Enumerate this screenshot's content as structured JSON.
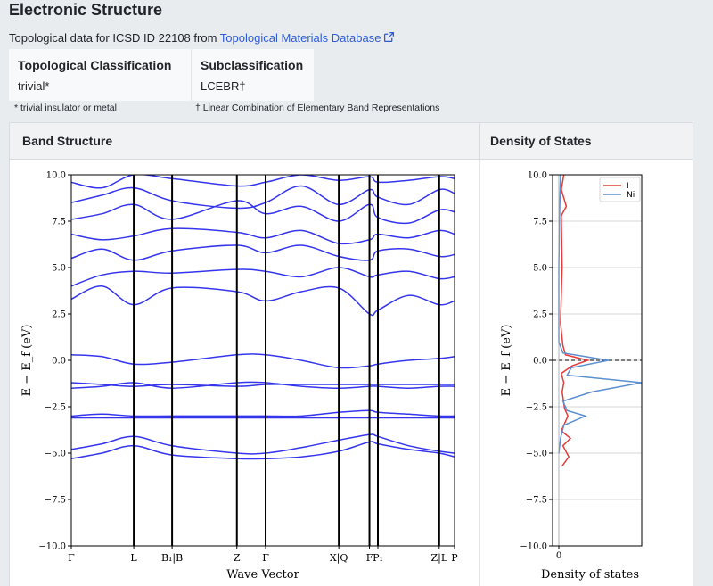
{
  "page": {
    "title": "Electronic Structure",
    "subtitle_prefix": "Topological data for ICSD ID 22108 from ",
    "subtitle_link": "Topological Materials Database",
    "link_icon": "external-link-icon"
  },
  "classification": {
    "topo_header": "Topological Classification",
    "topo_value": "trivial*",
    "sub_header": "Subclassification",
    "sub_value": "LCEBR†",
    "footnote_topo": "* trivial insulator or metal",
    "footnote_sub": "† Linear Combination of Elementary Band Representations"
  },
  "panel": {
    "band_header": "Band Structure",
    "dos_header": "Density of States"
  },
  "chart_data": [
    {
      "type": "line",
      "title": "",
      "xlabel": "Wave Vector",
      "ylabel": "E − E_f (eV)",
      "ylim": [
        -10,
        10
      ],
      "yticks": [
        -10.0,
        -7.5,
        -5.0,
        -2.5,
        0.0,
        2.5,
        5.0,
        7.5,
        10.0
      ],
      "ytick_labels": [
        "−10.0",
        "−7.5",
        "−5.0",
        "−2.5",
        "0.0",
        "2.5",
        "5.0",
        "7.5",
        "10.0"
      ],
      "kpoints": [
        {
          "label": "Γ",
          "x": 0.0
        },
        {
          "label": "L",
          "x": 0.163
        },
        {
          "label": "B₁|B",
          "x": 0.263
        },
        {
          "label": "Z",
          "x": 0.432
        },
        {
          "label": "Γ",
          "x": 0.507
        },
        {
          "label": "X|Q",
          "x": 0.698
        },
        {
          "label": "F",
          "x": 0.778
        },
        {
          "label": "P₁",
          "x": 0.8
        },
        {
          "label": "Z|L",
          "x": 0.96
        },
        {
          "label": "P",
          "x": 1.0
        }
      ],
      "band_color": "#3535ee",
      "bands": [
        {
          "x": [
            0,
            0.08,
            0.163,
            0.263,
            0.432,
            0.507,
            0.6,
            0.698,
            0.778,
            0.8,
            0.88,
            0.96,
            1.0
          ],
          "y": [
            -5.3,
            -5.0,
            -4.6,
            -5.1,
            -5.3,
            -5.3,
            -5.2,
            -4.9,
            -4.4,
            -4.5,
            -4.8,
            -5.0,
            -5.2
          ]
        },
        {
          "x": [
            0,
            0.08,
            0.163,
            0.263,
            0.432,
            0.507,
            0.6,
            0.698,
            0.778,
            0.8,
            0.88,
            0.96,
            1.0
          ],
          "y": [
            -4.8,
            -4.5,
            -4.1,
            -4.6,
            -5.0,
            -5.0,
            -4.7,
            -4.3,
            -4.0,
            -4.1,
            -4.6,
            -4.9,
            -5.0
          ]
        },
        {
          "x": [
            0,
            0.08,
            0.163,
            0.263,
            0.432,
            0.507,
            0.6,
            0.698,
            0.778,
            0.8,
            0.88,
            0.96,
            1.0
          ],
          "y": [
            -3.1,
            -3.1,
            -3.1,
            -3.1,
            -3.1,
            -3.1,
            -3.1,
            -3.1,
            -3.1,
            -3.1,
            -3.1,
            -3.1,
            -3.1
          ]
        },
        {
          "x": [
            0,
            0.08,
            0.163,
            0.263,
            0.432,
            0.507,
            0.6,
            0.698,
            0.778,
            0.8,
            0.88,
            0.96,
            1.0
          ],
          "y": [
            -3.0,
            -2.9,
            -3.0,
            -3.0,
            -3.0,
            -3.0,
            -3.0,
            -2.8,
            -2.7,
            -2.8,
            -2.9,
            -3.0,
            -3.0
          ]
        },
        {
          "x": [
            0,
            0.08,
            0.163,
            0.263,
            0.432,
            0.507,
            0.6,
            0.698,
            0.778,
            0.8,
            0.88,
            0.96,
            1.0
          ],
          "y": [
            -1.2,
            -1.3,
            -1.4,
            -1.3,
            -1.4,
            -1.3,
            -1.3,
            -1.3,
            -1.3,
            -1.3,
            -1.3,
            -1.3,
            -1.3
          ]
        },
        {
          "x": [
            0,
            0.08,
            0.163,
            0.263,
            0.432,
            0.507,
            0.6,
            0.698,
            0.778,
            0.8,
            0.88,
            0.96,
            1.0
          ],
          "y": [
            -1.5,
            -1.4,
            -1.2,
            -1.5,
            -1.2,
            -1.2,
            -1.4,
            -1.5,
            -1.4,
            -1.4,
            -1.5,
            -1.4,
            -1.4
          ]
        },
        {
          "x": [
            0,
            0.08,
            0.163,
            0.263,
            0.432,
            0.507,
            0.6,
            0.698,
            0.778,
            0.8,
            0.88,
            0.96,
            1.0
          ],
          "y": [
            0.3,
            0.2,
            -0.2,
            -0.1,
            0.3,
            0.3,
            0.0,
            -0.4,
            -0.3,
            -0.2,
            0.0,
            0.1,
            0.2
          ]
        },
        {
          "x": [
            0,
            0.08,
            0.163,
            0.263,
            0.432,
            0.507,
            0.6,
            0.698,
            0.778,
            0.8,
            0.88,
            0.96,
            1.0
          ],
          "y": [
            3.3,
            4.0,
            3.0,
            3.9,
            3.7,
            3.2,
            3.7,
            3.9,
            2.5,
            2.7,
            3.5,
            3.0,
            3.2
          ]
        },
        {
          "x": [
            0,
            0.08,
            0.163,
            0.263,
            0.432,
            0.507,
            0.6,
            0.698,
            0.778,
            0.8,
            0.88,
            0.96,
            1.0
          ],
          "y": [
            4.0,
            4.6,
            4.8,
            4.7,
            4.9,
            4.8,
            4.5,
            5.0,
            4.5,
            4.6,
            4.8,
            4.4,
            4.5
          ]
        },
        {
          "x": [
            0,
            0.08,
            0.163,
            0.263,
            0.432,
            0.507,
            0.6,
            0.698,
            0.778,
            0.8,
            0.88,
            0.96,
            1.0
          ],
          "y": [
            5.5,
            6.0,
            5.4,
            5.9,
            6.2,
            5.8,
            6.2,
            5.6,
            5.4,
            5.9,
            6.0,
            5.6,
            5.7
          ]
        },
        {
          "x": [
            0,
            0.08,
            0.163,
            0.263,
            0.432,
            0.507,
            0.6,
            0.698,
            0.778,
            0.8,
            0.88,
            0.96,
            1.0
          ],
          "y": [
            6.8,
            6.5,
            6.7,
            7.1,
            6.9,
            6.6,
            7.0,
            6.3,
            6.5,
            6.8,
            6.6,
            7.0,
            6.8
          ]
        },
        {
          "x": [
            0,
            0.08,
            0.163,
            0.263,
            0.432,
            0.507,
            0.6,
            0.698,
            0.778,
            0.8,
            0.88,
            0.96,
            1.0
          ],
          "y": [
            7.6,
            7.9,
            8.4,
            7.6,
            8.6,
            7.9,
            8.3,
            7.5,
            8.4,
            7.7,
            7.4,
            8.1,
            8.0
          ]
        },
        {
          "x": [
            0,
            0.08,
            0.163,
            0.263,
            0.432,
            0.507,
            0.6,
            0.698,
            0.778,
            0.8,
            0.88,
            0.96,
            1.0
          ],
          "y": [
            8.5,
            8.9,
            9.3,
            8.6,
            8.2,
            8.5,
            9.4,
            8.4,
            9.2,
            8.8,
            8.4,
            9.2,
            9.0
          ]
        },
        {
          "x": [
            0,
            0.08,
            0.163,
            0.263,
            0.432,
            0.507,
            0.6,
            0.698,
            0.778,
            0.8,
            0.88,
            0.96,
            1.0
          ],
          "y": [
            9.6,
            9.3,
            10.0,
            9.8,
            9.4,
            9.6,
            10.0,
            9.7,
            9.9,
            9.6,
            9.7,
            9.9,
            9.8
          ]
        }
      ]
    },
    {
      "type": "line",
      "title": "",
      "xlabel": "Density of states",
      "ylabel": "E − E_f (eV)",
      "ylim": [
        -10,
        10
      ],
      "xlim": [
        0,
        1
      ],
      "yticks": [
        -10.0,
        -7.5,
        -5.0,
        -2.5,
        0.0,
        2.5,
        5.0,
        7.5,
        10.0
      ],
      "ytick_labels": [
        "−10.0",
        "−7.5",
        "−5.0",
        "−2.5",
        "0.0",
        "2.5",
        "5.0",
        "7.5",
        "10.0"
      ],
      "xticks": [
        0
      ],
      "xtick_labels": [
        "0"
      ],
      "grid": "horizontal",
      "legend": "top-right",
      "fermi_level": 0.0,
      "series": [
        {
          "name": "I",
          "color": "#e43b3b",
          "y": [
            -5.7,
            -5.2,
            -4.6,
            -4.2,
            -3.8,
            -3.0,
            -2.6,
            -1.7,
            -1.2,
            -0.7,
            -0.3,
            0.0,
            0.3,
            0.8,
            2.0,
            5.0,
            7.8,
            8.3,
            9.2,
            10.0
          ],
          "x": [
            0.04,
            0.12,
            0.05,
            0.14,
            0.03,
            0.11,
            0.07,
            0.04,
            0.06,
            0.03,
            0.16,
            0.35,
            0.08,
            0.05,
            0.02,
            0.04,
            0.03,
            0.09,
            0.03,
            0.06
          ]
        },
        {
          "name": "Ni",
          "color": "#5b8fcf",
          "y": [
            -5.0,
            -4.2,
            -3.5,
            -3.0,
            -2.7,
            -2.2,
            -1.7,
            -1.2,
            -0.8,
            -0.4,
            0.0,
            0.4,
            1.0,
            5.0,
            8.0,
            10.0
          ],
          "x": [
            0.0,
            0.02,
            0.06,
            0.32,
            0.1,
            0.05,
            0.4,
            1.0,
            0.1,
            0.15,
            0.6,
            0.05,
            0.0,
            0.0,
            0.01,
            0.02
          ]
        }
      ]
    }
  ]
}
